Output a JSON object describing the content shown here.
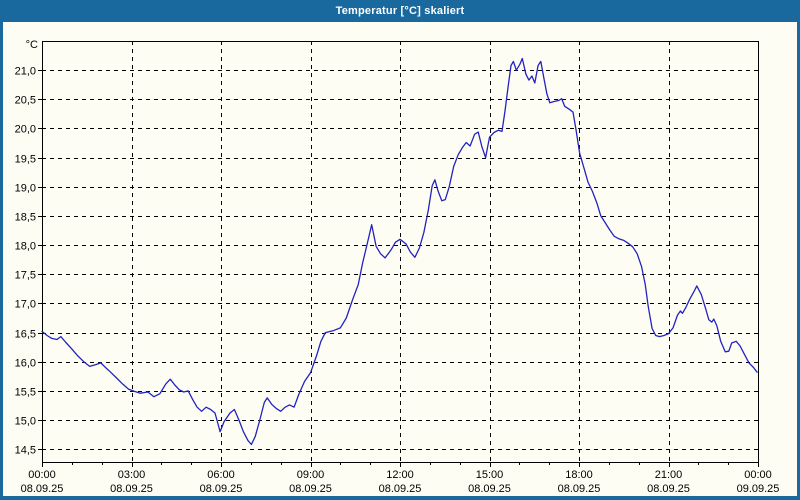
{
  "window": {
    "title": "Temperatur [°C] skaliert"
  },
  "colors": {
    "frame": "#19689e",
    "titlebar_bg": "#19689e",
    "titlebar_text": "#ffffff",
    "canvas_bg": "#fdfdf4",
    "plot_border": "#000000",
    "grid": "#000000",
    "tick_text": "#000000",
    "line": "#2323c0"
  },
  "chart_data": {
    "type": "line",
    "title": "Temperatur [°C] skaliert",
    "ylabel": "°C",
    "xlabel": "",
    "grid": "dashed",
    "legend": "none",
    "ylim": [
      14.28,
      21.5
    ],
    "x_range_hours": [
      0,
      24
    ],
    "minor_tick_every_hours": 1,
    "y_ticks": [
      {
        "label": "21,0",
        "value": 21.0
      },
      {
        "label": "20,5",
        "value": 20.5
      },
      {
        "label": "20,0",
        "value": 20.0
      },
      {
        "label": "19,5",
        "value": 19.5
      },
      {
        "label": "19,0",
        "value": 19.0
      },
      {
        "label": "18,5",
        "value": 18.5
      },
      {
        "label": "18,0",
        "value": 18.0
      },
      {
        "label": "17,5",
        "value": 17.5
      },
      {
        "label": "17,0",
        "value": 17.0
      },
      {
        "label": "16,5",
        "value": 16.5
      },
      {
        "label": "16,0",
        "value": 16.0
      },
      {
        "label": "15,5",
        "value": 15.5
      },
      {
        "label": "15,0",
        "value": 15.0
      },
      {
        "label": "14,5",
        "value": 14.5
      }
    ],
    "x_ticks": [
      {
        "hour": 0,
        "time": "00:00",
        "date": "08.09.25"
      },
      {
        "hour": 3,
        "time": "03:00",
        "date": "08.09.25"
      },
      {
        "hour": 6,
        "time": "06:00",
        "date": "08.09.25"
      },
      {
        "hour": 9,
        "time": "09:00",
        "date": "08.09.25"
      },
      {
        "hour": 12,
        "time": "12:00",
        "date": "08.09.25"
      },
      {
        "hour": 15,
        "time": "15:00",
        "date": "08.09.25"
      },
      {
        "hour": 18,
        "time": "18:00",
        "date": "08.09.25"
      },
      {
        "hour": 21,
        "time": "21:00",
        "date": "08.09.25"
      },
      {
        "hour": 24,
        "time": "00:00",
        "date": "09.09.25"
      }
    ],
    "series": [
      {
        "name": "Temperatur",
        "points": [
          [
            0,
            16.52
          ],
          [
            0.17,
            16.45
          ],
          [
            0.33,
            16.4
          ],
          [
            0.5,
            16.38
          ],
          [
            0.63,
            16.43
          ],
          [
            0.8,
            16.33
          ],
          [
            1,
            16.22
          ],
          [
            1.2,
            16.1
          ],
          [
            1.4,
            16.0
          ],
          [
            1.6,
            15.92
          ],
          [
            1.8,
            15.95
          ],
          [
            1.97,
            15.98
          ],
          [
            2.13,
            15.9
          ],
          [
            2.3,
            15.82
          ],
          [
            2.5,
            15.72
          ],
          [
            2.7,
            15.62
          ],
          [
            2.9,
            15.53
          ],
          [
            3.1,
            15.49
          ],
          [
            3.3,
            15.46
          ],
          [
            3.55,
            15.48
          ],
          [
            3.75,
            15.4
          ],
          [
            3.95,
            15.45
          ],
          [
            4.15,
            15.62
          ],
          [
            4.3,
            15.7
          ],
          [
            4.45,
            15.6
          ],
          [
            4.6,
            15.52
          ],
          [
            4.75,
            15.48
          ],
          [
            4.9,
            15.5
          ],
          [
            5.05,
            15.35
          ],
          [
            5.2,
            15.22
          ],
          [
            5.35,
            15.15
          ],
          [
            5.5,
            15.22
          ],
          [
            5.65,
            15.18
          ],
          [
            5.8,
            15.12
          ],
          [
            5.97,
            14.8
          ],
          [
            6.1,
            14.97
          ],
          [
            6.3,
            15.12
          ],
          [
            6.45,
            15.18
          ],
          [
            6.6,
            15.0
          ],
          [
            6.75,
            14.8
          ],
          [
            6.9,
            14.65
          ],
          [
            7.02,
            14.58
          ],
          [
            7.15,
            14.72
          ],
          [
            7.3,
            15.0
          ],
          [
            7.45,
            15.3
          ],
          [
            7.55,
            15.38
          ],
          [
            7.7,
            15.27
          ],
          [
            7.85,
            15.2
          ],
          [
            8,
            15.15
          ],
          [
            8.15,
            15.22
          ],
          [
            8.3,
            15.26
          ],
          [
            8.45,
            15.22
          ],
          [
            8.6,
            15.43
          ],
          [
            8.8,
            15.66
          ],
          [
            9,
            15.81
          ],
          [
            9.2,
            16.1
          ],
          [
            9.35,
            16.35
          ],
          [
            9.5,
            16.5
          ],
          [
            9.75,
            16.53
          ],
          [
            10,
            16.58
          ],
          [
            10.2,
            16.75
          ],
          [
            10.4,
            17.05
          ],
          [
            10.6,
            17.32
          ],
          [
            10.75,
            17.7
          ],
          [
            10.9,
            18.02
          ],
          [
            11.05,
            18.35
          ],
          [
            11.2,
            17.98
          ],
          [
            11.35,
            17.85
          ],
          [
            11.5,
            17.78
          ],
          [
            11.7,
            17.92
          ],
          [
            11.85,
            18.05
          ],
          [
            12,
            18.1
          ],
          [
            12.2,
            18.02
          ],
          [
            12.35,
            17.88
          ],
          [
            12.5,
            17.79
          ],
          [
            12.65,
            17.95
          ],
          [
            12.8,
            18.22
          ],
          [
            12.95,
            18.6
          ],
          [
            13.08,
            19.02
          ],
          [
            13.17,
            19.12
          ],
          [
            13.28,
            18.92
          ],
          [
            13.4,
            18.76
          ],
          [
            13.52,
            18.78
          ],
          [
            13.65,
            19.0
          ],
          [
            13.8,
            19.35
          ],
          [
            13.95,
            19.55
          ],
          [
            14.1,
            19.68
          ],
          [
            14.22,
            19.76
          ],
          [
            14.35,
            19.7
          ],
          [
            14.5,
            19.9
          ],
          [
            14.62,
            19.94
          ],
          [
            14.75,
            19.68
          ],
          [
            14.87,
            19.5
          ],
          [
            15,
            19.85
          ],
          [
            15.15,
            19.93
          ],
          [
            15.3,
            19.97
          ],
          [
            15.42,
            19.95
          ],
          [
            15.52,
            20.3
          ],
          [
            15.62,
            20.7
          ],
          [
            15.72,
            21.08
          ],
          [
            15.8,
            21.15
          ],
          [
            15.9,
            21.0
          ],
          [
            16.02,
            21.1
          ],
          [
            16.1,
            21.2
          ],
          [
            16.22,
            20.93
          ],
          [
            16.32,
            20.83
          ],
          [
            16.42,
            20.9
          ],
          [
            16.52,
            20.78
          ],
          [
            16.63,
            21.08
          ],
          [
            16.72,
            21.15
          ],
          [
            16.82,
            20.87
          ],
          [
            16.92,
            20.6
          ],
          [
            17.02,
            20.44
          ],
          [
            17.15,
            20.46
          ],
          [
            17.32,
            20.48
          ],
          [
            17.42,
            20.51
          ],
          [
            17.52,
            20.38
          ],
          [
            17.67,
            20.33
          ],
          [
            17.8,
            20.28
          ],
          [
            17.9,
            19.98
          ],
          [
            18.02,
            19.58
          ],
          [
            18.15,
            19.35
          ],
          [
            18.3,
            19.08
          ],
          [
            18.45,
            18.92
          ],
          [
            18.6,
            18.72
          ],
          [
            18.73,
            18.5
          ],
          [
            18.88,
            18.38
          ],
          [
            19.03,
            18.26
          ],
          [
            19.18,
            18.15
          ],
          [
            19.33,
            18.11
          ],
          [
            19.5,
            18.08
          ],
          [
            19.65,
            18.03
          ],
          [
            19.8,
            17.97
          ],
          [
            19.95,
            17.85
          ],
          [
            20.1,
            17.63
          ],
          [
            20.22,
            17.33
          ],
          [
            20.32,
            16.95
          ],
          [
            20.45,
            16.57
          ],
          [
            20.57,
            16.45
          ],
          [
            20.7,
            16.43
          ],
          [
            20.85,
            16.45
          ],
          [
            21,
            16.48
          ],
          [
            21.15,
            16.58
          ],
          [
            21.3,
            16.8
          ],
          [
            21.4,
            16.87
          ],
          [
            21.47,
            16.83
          ],
          [
            21.57,
            16.92
          ],
          [
            21.72,
            17.08
          ],
          [
            21.85,
            17.2
          ],
          [
            21.95,
            17.3
          ],
          [
            22.1,
            17.15
          ],
          [
            22.25,
            16.9
          ],
          [
            22.35,
            16.72
          ],
          [
            22.45,
            16.68
          ],
          [
            22.52,
            16.73
          ],
          [
            22.62,
            16.62
          ],
          [
            22.75,
            16.35
          ],
          [
            22.9,
            16.17
          ],
          [
            23.02,
            16.18
          ],
          [
            23.12,
            16.32
          ],
          [
            23.27,
            16.35
          ],
          [
            23.4,
            16.27
          ],
          [
            23.55,
            16.12
          ],
          [
            23.7,
            15.98
          ],
          [
            23.85,
            15.9
          ],
          [
            23.97,
            15.82
          ]
        ]
      }
    ]
  }
}
